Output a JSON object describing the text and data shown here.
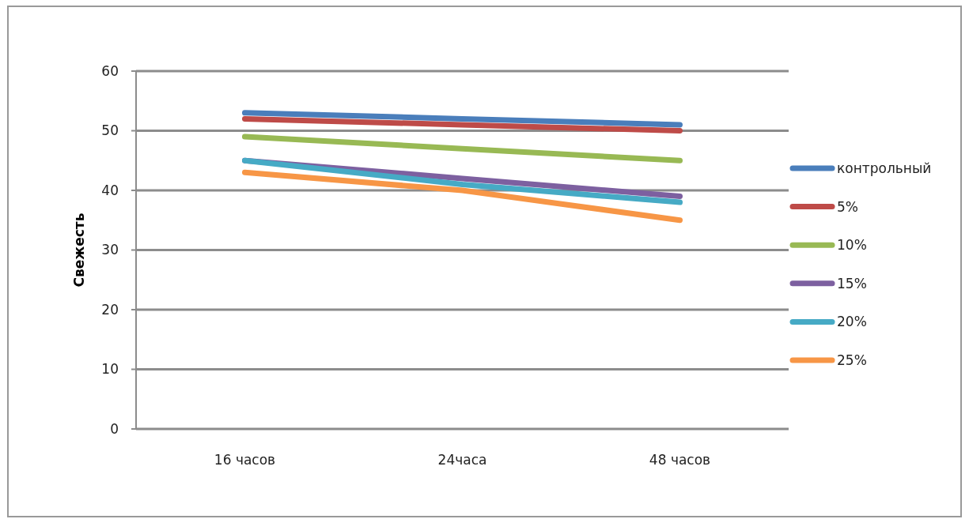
{
  "chart_data": {
    "type": "line",
    "ylabel": "Свежесть",
    "categories": [
      "16 часов",
      "24часа",
      "48 часов"
    ],
    "series": [
      {
        "name": "контрольный",
        "color": "#4a7ebb",
        "values": [
          53,
          52,
          51
        ]
      },
      {
        "name": "5%",
        "color": "#be4b48",
        "values": [
          52,
          51,
          50
        ]
      },
      {
        "name": "10%",
        "color": "#98b954",
        "values": [
          49,
          47,
          45
        ]
      },
      {
        "name": "15%",
        "color": "#7d60a0",
        "values": [
          45,
          42,
          39
        ]
      },
      {
        "name": "20%",
        "color": "#46aac5",
        "values": [
          45,
          41,
          38
        ]
      },
      {
        "name": "25%",
        "color": "#f79646",
        "values": [
          43,
          40,
          35
        ]
      }
    ],
    "ylim": [
      0,
      60
    ],
    "yticks": [
      0,
      10,
      20,
      30,
      40,
      50,
      60
    ],
    "grid": "y",
    "legend": "right",
    "marker": "none",
    "line_style": "solid"
  }
}
